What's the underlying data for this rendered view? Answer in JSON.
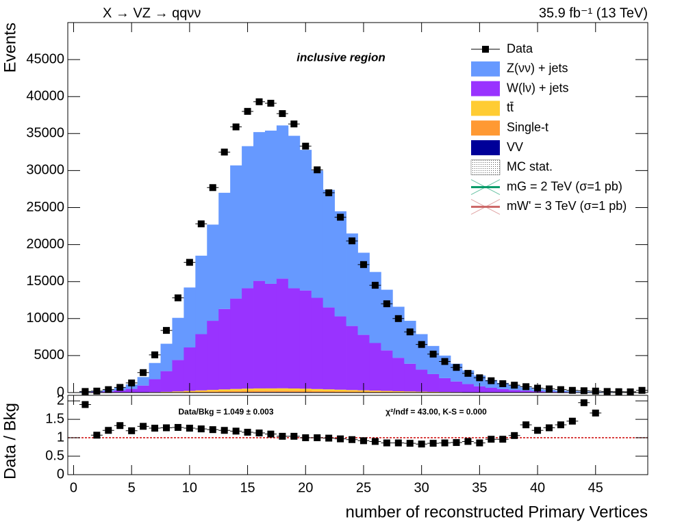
{
  "chart_data": [
    {
      "type": "stacked-histogram",
      "title": "X → VZ → qqνν",
      "subtitle": "35.9 fb⁻¹ (13 TeV)",
      "annotation": "inclusive region",
      "y_label": "Events",
      "x": [
        0,
        1,
        2,
        3,
        4,
        5,
        6,
        7,
        8,
        9,
        10,
        11,
        12,
        13,
        14,
        15,
        16,
        17,
        18,
        19,
        20,
        21,
        22,
        23,
        24,
        25,
        26,
        27,
        28,
        29,
        30,
        31,
        32,
        33,
        34,
        35,
        36,
        37,
        38,
        39,
        40,
        41,
        42,
        43,
        44,
        45,
        46,
        47,
        48,
        49
      ],
      "xlim": [
        -0.5,
        49.5
      ],
      "xticks": [
        0,
        5,
        10,
        15,
        20,
        25,
        30,
        35,
        40,
        45
      ],
      "ylim": [
        0,
        50000
      ],
      "yticks": [
        0,
        5000,
        10000,
        15000,
        20000,
        25000,
        30000,
        35000,
        40000,
        45000
      ],
      "series": [
        {
          "name": "Data",
          "kind": "points",
          "color": "#000000",
          "values": [
            null,
            150,
            200,
            400,
            700,
            1300,
            2700,
            5100,
            8400,
            12800,
            17600,
            22800,
            27700,
            32500,
            35900,
            38000,
            39300,
            39100,
            37700,
            36300,
            33300,
            30100,
            27000,
            23700,
            20500,
            17300,
            14500,
            12000,
            10000,
            8200,
            6500,
            5200,
            4200,
            3400,
            2600,
            2000,
            1600,
            1200,
            1000,
            800,
            600,
            500,
            400,
            300,
            250,
            200,
            150,
            120,
            100,
            300
          ]
        },
        {
          "name": "Z(νν) + jets",
          "kind": "stack",
          "color": "#6699ff",
          "values": [
            0,
            50,
            110,
            190,
            350,
            600,
            1150,
            2200,
            3700,
            5700,
            8100,
            10600,
            13000,
            15700,
            18000,
            19200,
            20100,
            20700,
            20700,
            20600,
            19000,
            17200,
            15900,
            14200,
            12500,
            11100,
            9600,
            8200,
            6900,
            5800,
            4800,
            3800,
            3050,
            2400,
            1850,
            1450,
            1050,
            820,
            600,
            440,
            320,
            240,
            175,
            130,
            90,
            65,
            45,
            32,
            23,
            17
          ]
        },
        {
          "name": "W(lν) + jets",
          "kind": "stack",
          "color": "#9933ff",
          "values": [
            0,
            48,
            87,
            154,
            290,
            482,
            916,
            1736,
            2795,
            4238,
            5873,
            7603,
            9337,
            10868,
            12209,
            13566,
            14537,
            14133,
            14822,
            13545,
            13275,
            12320,
            11061,
            9907,
            8655,
            7497,
            6438,
            5477,
            4515,
            3745,
            2973,
            2398,
            1870,
            1437,
            1102,
            812,
            623,
            458,
            334,
            249,
            171,
            124,
            91,
            67,
            48,
            33,
            24,
            18,
            12,
            8
          ]
        },
        {
          "name": "tt̄",
          "kind": "stack",
          "color": "#ffcc33",
          "values": [
            0,
            1,
            2,
            3,
            6,
            10,
            19,
            36,
            59,
            91,
            128,
            167,
            204,
            243,
            276,
            300,
            317,
            319,
            325,
            312,
            295,
            270,
            247,
            221,
            194,
            170,
            147,
            125,
            104,
            87,
            71,
            57,
            45,
            35,
            27,
            21,
            15,
            12,
            9,
            6,
            5,
            3,
            2,
            2,
            1,
            1,
            1,
            0,
            0,
            0
          ]
        },
        {
          "name": "Single-t",
          "kind": "stack",
          "color": "#ff9933",
          "values": [
            0,
            1,
            1,
            2,
            3,
            6,
            11,
            20,
            33,
            51,
            71,
            93,
            114,
            135,
            154,
            167,
            176,
            177,
            181,
            174,
            164,
            150,
            137,
            123,
            108,
            95,
            82,
            70,
            58,
            49,
            40,
            32,
            25,
            20,
            15,
            12,
            9,
            7,
            5,
            4,
            3,
            2,
            1,
            1,
            1,
            1,
            0,
            0,
            0,
            0
          ]
        },
        {
          "name": "VV",
          "kind": "stack",
          "color": "#000099",
          "values": [
            0,
            0,
            0,
            1,
            1,
            2,
            4,
            8,
            13,
            20,
            28,
            37,
            45,
            54,
            61,
            67,
            70,
            71,
            72,
            69,
            66,
            60,
            55,
            49,
            43,
            38,
            33,
            28,
            23,
            19,
            16,
            13,
            10,
            8,
            6,
            5,
            3,
            3,
            2,
            1,
            1,
            1,
            1,
            0,
            0,
            0,
            0,
            0,
            0,
            0
          ]
        }
      ],
      "legend_extra": [
        {
          "name": "MC stat.",
          "style": "hatch",
          "color": "#555555"
        },
        {
          "name": "mG = 2 TeV (σ=1 pb)",
          "style": "line",
          "color": "#009966"
        },
        {
          "name": "mW' = 3 TeV (σ=1 pb)",
          "style": "line",
          "color": "#cc6666"
        }
      ],
      "legend": "top-right"
    },
    {
      "type": "scatter",
      "x_label": "number of reconstructed Primary Vertices",
      "y_label": "Data / Bkg",
      "annotations": [
        "Data/Bkg = 1.049 ± 0.003",
        "χ²/ndf = 43.00,   K-S = 0.000"
      ],
      "x": [
        0,
        1,
        2,
        3,
        4,
        5,
        6,
        7,
        8,
        9,
        10,
        11,
        12,
        13,
        14,
        15,
        16,
        17,
        18,
        19,
        20,
        21,
        22,
        23,
        24,
        25,
        26,
        27,
        28,
        29,
        30,
        31,
        32,
        33,
        34,
        35,
        36,
        37,
        38,
        39,
        40,
        41,
        42,
        43,
        44,
        45,
        46,
        47,
        48,
        49
      ],
      "values": [
        null,
        1.9,
        1.07,
        1.2,
        1.33,
        1.19,
        1.31,
        1.26,
        1.27,
        1.28,
        1.26,
        1.24,
        1.22,
        1.2,
        1.18,
        1.15,
        1.13,
        1.1,
        1.04,
        1.04,
        1.0,
        1.0,
        0.99,
        0.97,
        0.95,
        0.92,
        0.9,
        0.86,
        0.86,
        0.85,
        0.83,
        0.85,
        0.86,
        0.87,
        0.9,
        0.86,
        0.96,
        0.96,
        1.06,
        1.35,
        1.2,
        1.27,
        1.35,
        1.45,
        1.95,
        1.67,
        null,
        null,
        null,
        null
      ],
      "color": "#000000",
      "reference": 1,
      "reference_color": "#cc0000",
      "xlim": [
        -0.5,
        49.5
      ],
      "xticks": [
        0,
        5,
        10,
        15,
        20,
        25,
        30,
        35,
        40,
        45
      ],
      "ylim": [
        0,
        2.15
      ],
      "yticks": [
        0,
        0.5,
        1,
        1.5,
        2
      ]
    }
  ]
}
